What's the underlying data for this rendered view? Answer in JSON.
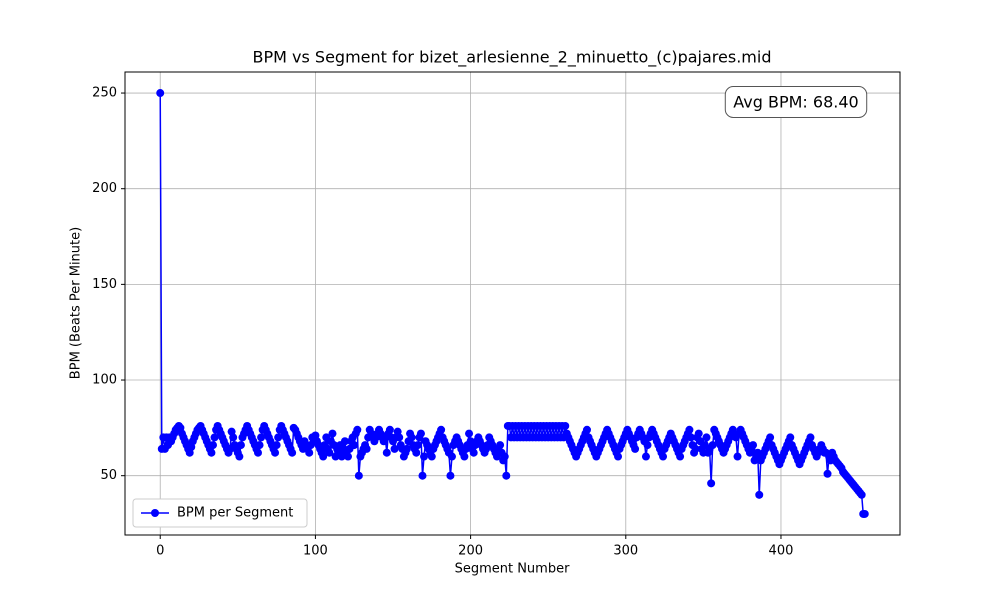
{
  "chart_data": {
    "type": "line",
    "title": "BPM vs Segment for bizet_arlesienne_2_minuetto_(c)pajares.mid",
    "x_label": "Segment Number",
    "y_label": "BPM (Beats Per Minute)",
    "annotation": "Avg BPM: 68.40",
    "xlim": [
      -22.7,
      476.7
    ],
    "xticks": [
      0,
      100,
      200,
      300,
      400
    ],
    "ylim": [
      19,
      261
    ],
    "yticks": [
      50,
      100,
      150,
      200,
      250
    ],
    "grid": true,
    "legend": "lower left",
    "series": [
      {
        "name": "BPM per Segment",
        "color": "blue",
        "values": [
          250,
          64,
          70,
          64,
          70,
          66,
          70,
          68,
          70,
          72,
          74,
          75,
          76,
          75,
          72,
          70,
          68,
          66,
          64,
          62,
          65,
          68,
          70,
          72,
          74,
          75,
          76,
          74,
          72,
          70,
          68,
          66,
          64,
          62,
          66,
          70,
          74,
          76,
          74,
          72,
          70,
          68,
          66,
          64,
          62,
          64,
          73,
          70,
          66,
          64,
          62,
          60,
          66,
          70,
          72,
          74,
          76,
          74,
          72,
          70,
          68,
          66,
          64,
          62,
          66,
          70,
          74,
          76,
          74,
          72,
          70,
          68,
          66,
          64,
          62,
          66,
          70,
          74,
          76,
          74,
          72,
          70,
          68,
          66,
          64,
          62,
          75,
          74,
          72,
          70,
          68,
          66,
          64,
          68,
          66,
          64,
          62,
          66,
          70,
          68,
          71,
          68,
          66,
          64,
          62,
          60,
          66,
          70,
          64,
          62,
          68,
          72,
          66,
          60,
          64,
          62,
          66,
          60,
          64,
          68,
          62,
          60,
          64,
          68,
          70,
          66,
          72,
          74,
          50,
          60,
          62,
          64,
          66,
          64,
          70,
          74,
          72,
          70,
          68,
          70,
          72,
          74,
          72,
          70,
          68,
          70,
          62,
          72,
          74,
          70,
          68,
          64,
          70,
          73,
          70,
          66,
          64,
          60,
          62,
          64,
          68,
          72,
          70,
          66,
          64,
          62,
          66,
          70,
          72,
          50,
          60,
          68,
          66,
          64,
          62,
          60,
          64,
          66,
          68,
          70,
          72,
          74,
          70,
          68,
          66,
          64,
          62,
          50,
          60,
          66,
          68,
          70,
          68,
          66,
          64,
          62,
          60,
          64,
          66,
          72,
          68,
          64,
          62,
          66,
          68,
          70,
          68,
          66,
          64,
          62,
          64,
          66,
          70,
          68,
          66,
          64,
          62,
          60,
          64,
          66,
          62,
          58,
          60,
          50,
          76,
          76,
          70,
          76,
          70,
          76,
          70,
          76,
          70,
          76,
          70,
          76,
          70,
          76,
          70,
          76,
          70,
          76,
          70,
          76,
          70,
          76,
          70,
          76,
          70,
          76,
          70,
          76,
          70,
          76,
          70,
          76,
          70,
          76,
          70,
          76,
          70,
          76,
          72,
          70,
          68,
          66,
          64,
          62,
          60,
          62,
          64,
          66,
          68,
          70,
          72,
          74,
          70,
          68,
          66,
          64,
          62,
          60,
          62,
          64,
          66,
          68,
          70,
          72,
          74,
          72,
          70,
          68,
          66,
          64,
          62,
          60,
          64,
          66,
          68,
          70,
          72,
          74,
          72,
          70,
          68,
          66,
          64,
          70,
          72,
          74,
          72,
          70,
          68,
          60,
          66,
          70,
          72,
          74,
          72,
          70,
          68,
          66,
          64,
          62,
          60,
          64,
          66,
          68,
          70,
          72,
          70,
          68,
          66,
          64,
          62,
          60,
          64,
          66,
          68,
          70,
          72,
          74,
          70,
          66,
          62,
          64,
          70,
          72,
          68,
          64,
          62,
          66,
          70,
          62,
          64,
          46,
          66,
          74,
          72,
          70,
          68,
          66,
          64,
          62,
          64,
          66,
          68,
          70,
          72,
          74,
          72,
          70,
          60,
          72,
          74,
          72,
          70,
          68,
          66,
          64,
          62,
          64,
          66,
          58,
          60,
          62,
          40,
          58,
          60,
          62,
          64,
          66,
          68,
          70,
          66,
          64,
          62,
          60,
          58,
          56,
          58,
          60,
          62,
          64,
          66,
          68,
          70,
          66,
          64,
          62,
          60,
          58,
          56,
          58,
          60,
          62,
          64,
          66,
          68,
          70,
          66,
          64,
          62,
          60,
          62,
          64,
          66,
          64,
          62,
          62,
          51,
          60,
          58,
          62,
          60,
          58,
          57,
          56,
          55,
          54,
          52,
          51,
          50,
          49,
          48,
          47,
          46,
          45,
          44,
          43,
          42,
          41,
          40,
          30,
          30
        ]
      }
    ]
  }
}
